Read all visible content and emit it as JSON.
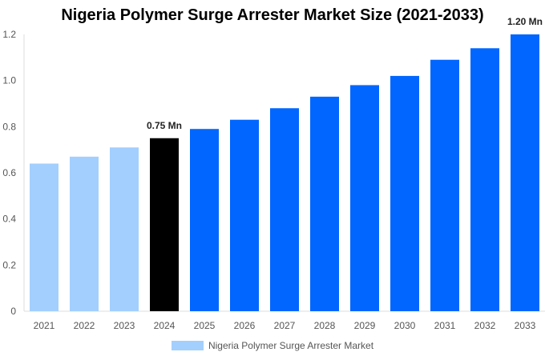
{
  "chart_data": {
    "type": "bar",
    "title": "Nigeria Polymer Surge Arrester Market Size (2021-2033)",
    "categories": [
      "2021",
      "2022",
      "2023",
      "2024",
      "2025",
      "2026",
      "2027",
      "2028",
      "2029",
      "2030",
      "2031",
      "2032",
      "2033"
    ],
    "series": [
      {
        "name": "Nigeria Polymer Surge Arrester Market",
        "values": [
          0.64,
          0.67,
          0.71,
          0.75,
          0.79,
          0.83,
          0.88,
          0.93,
          0.98,
          1.02,
          1.09,
          1.14,
          1.2
        ]
      }
    ],
    "ylim": [
      0,
      1.2
    ],
    "yticks": [
      "0",
      "0.2",
      "0.4",
      "0.6",
      "0.8",
      "1.0",
      "1.2"
    ],
    "data_labels": [
      {
        "index": 3,
        "text": "0.75 Mn"
      },
      {
        "index": 12,
        "text": "1.20 Mn"
      }
    ],
    "colors": {
      "historical": "#a3cfff",
      "base_year": "#000000",
      "forecast": "#0066ff"
    },
    "grid": false,
    "legend": "bottom"
  }
}
